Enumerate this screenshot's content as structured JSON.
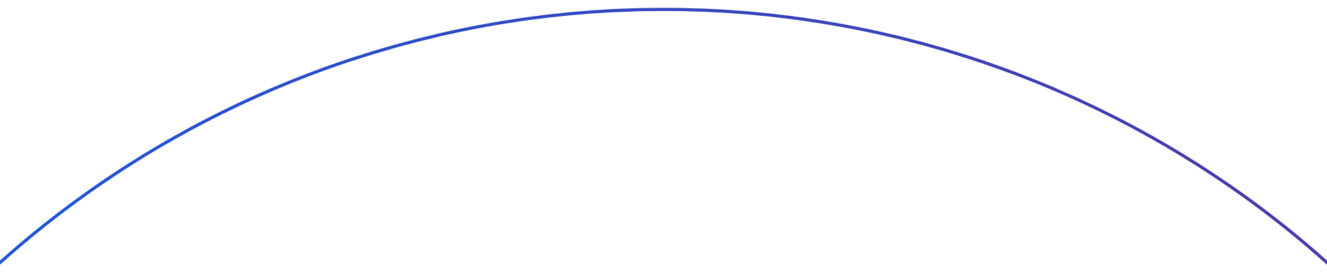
{
  "arc": {
    "color_start": "#1b52d4",
    "color_end": "#4636a8"
  }
}
